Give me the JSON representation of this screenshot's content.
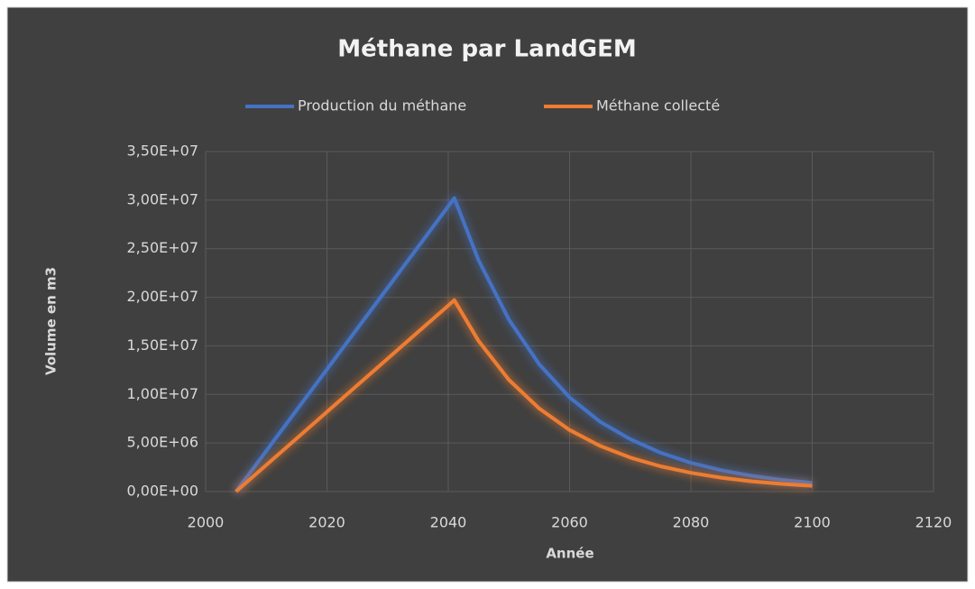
{
  "chart_data": {
    "type": "line",
    "title": "Méthane par LandGEM",
    "x_label": "Année",
    "y_label": "Volume en m3",
    "x": [
      2005,
      2010,
      2015,
      2020,
      2025,
      2030,
      2035,
      2040,
      2041,
      2045,
      2050,
      2055,
      2060,
      2065,
      2070,
      2075,
      2080,
      2085,
      2090,
      2095,
      2100
    ],
    "series": [
      {
        "name": "Production du méthane",
        "color": "#4472c4",
        "values": [
          0,
          4190000,
          8390000,
          12580000,
          16780000,
          20970000,
          25170000,
          29360000,
          30200000,
          23800000,
          17700000,
          13100000,
          9700000,
          7200000,
          5400000,
          4000000,
          2960000,
          2200000,
          1630000,
          1210000,
          900000
        ]
      },
      {
        "name": "Méthane collecté",
        "color": "#ed7d31",
        "values": [
          0,
          2740000,
          5470000,
          8210000,
          10940000,
          13680000,
          16420000,
          19150000,
          19700000,
          15500000,
          11500000,
          8550000,
          6340000,
          4710000,
          3500000,
          2600000,
          1930000,
          1430000,
          1060000,
          790000,
          590000
        ]
      }
    ],
    "xlim": [
      2000,
      2120
    ],
    "xticks": [
      2000,
      2020,
      2040,
      2060,
      2080,
      2100,
      2120
    ],
    "ylim": [
      0,
      35000000
    ],
    "yticks": [
      {
        "value": 0,
        "label": "0,00E+00"
      },
      {
        "value": 5000000,
        "label": "5,00E+06"
      },
      {
        "value": 10000000,
        "label": "1,00E+07"
      },
      {
        "value": 15000000,
        "label": "1,50E+07"
      },
      {
        "value": 20000000,
        "label": "2,00E+07"
      },
      {
        "value": 25000000,
        "label": "2,50E+07"
      },
      {
        "value": 30000000,
        "label": "3,00E+07"
      },
      {
        "value": 35000000,
        "label": "3,50E+07"
      }
    ],
    "grid": true,
    "legend": "top"
  }
}
